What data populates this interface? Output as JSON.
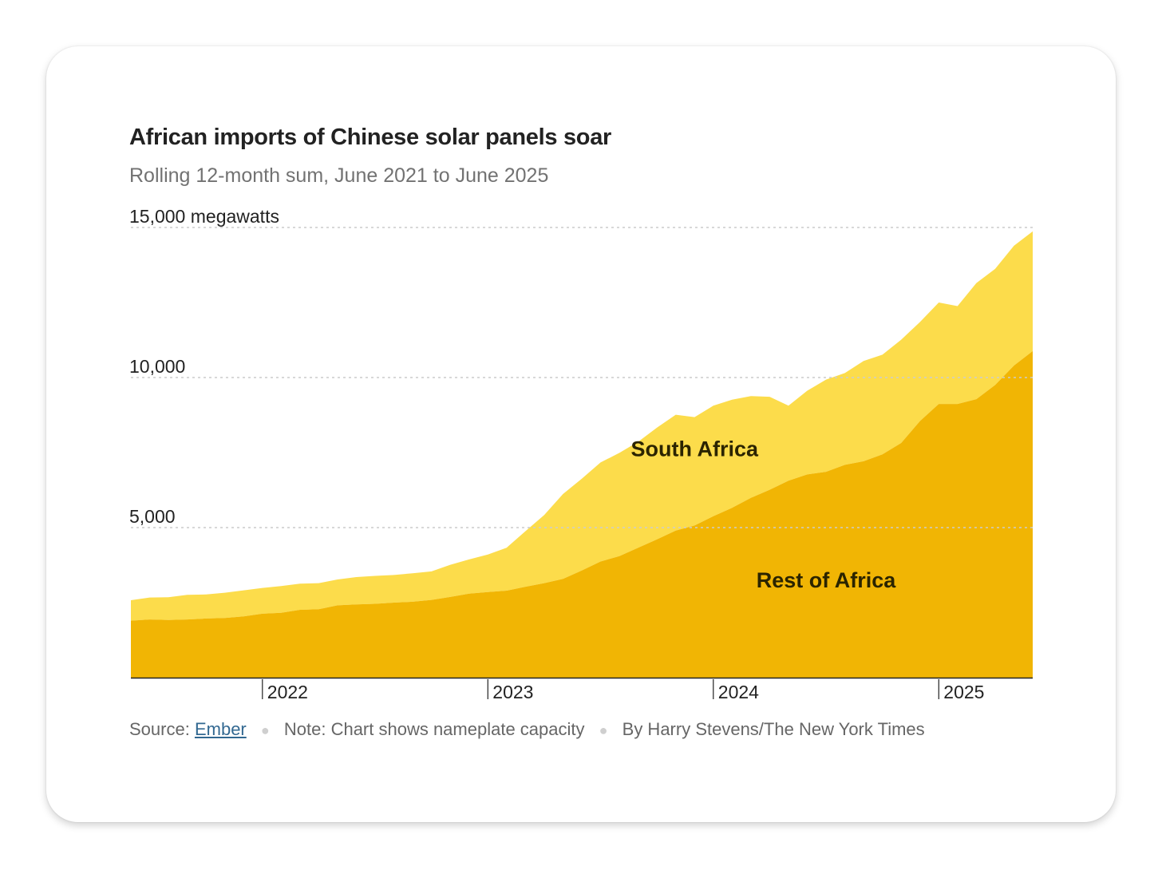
{
  "chart_data": {
    "type": "area",
    "stacked": true,
    "title": "African imports of Chinese solar panels soar",
    "subtitle": "Rolling 12-month sum, June 2021 to June 2025",
    "ylabel": "",
    "ylim": [
      0,
      15000
    ],
    "y_ticks": [
      {
        "value": 15000,
        "label": "15,000 megawatts"
      },
      {
        "value": 10000,
        "label": "10,000"
      },
      {
        "value": 5000,
        "label": "5,000"
      }
    ],
    "x_ticks": [
      {
        "index": 7,
        "label": "2022"
      },
      {
        "index": 19,
        "label": "2023"
      },
      {
        "index": 31,
        "label": "2024"
      },
      {
        "index": 43,
        "label": "2025"
      }
    ],
    "x": [
      "Jun 2021",
      "Jul 2021",
      "Aug 2021",
      "Sep 2021",
      "Oct 2021",
      "Nov 2021",
      "Dec 2021",
      "Jan 2022",
      "Feb 2022",
      "Mar 2022",
      "Apr 2022",
      "May 2022",
      "Jun 2022",
      "Jul 2022",
      "Aug 2022",
      "Sep 2022",
      "Oct 2022",
      "Nov 2022",
      "Dec 2022",
      "Jan 2023",
      "Feb 2023",
      "Mar 2023",
      "Apr 2023",
      "May 2023",
      "Jun 2023",
      "Jul 2023",
      "Aug 2023",
      "Sep 2023",
      "Oct 2023",
      "Nov 2023",
      "Dec 2023",
      "Jan 2024",
      "Feb 2024",
      "Mar 2024",
      "Apr 2024",
      "May 2024",
      "Jun 2024",
      "Jul 2024",
      "Aug 2024",
      "Sep 2024",
      "Oct 2024",
      "Nov 2024",
      "Dec 2024",
      "Jan 2025",
      "Feb 2025",
      "Mar 2025",
      "Apr 2025",
      "May 2025",
      "Jun 2025"
    ],
    "series": [
      {
        "name": "Rest of Africa",
        "label_anchor_index": 37,
        "label_anchor_value": 3000,
        "values": [
          1900,
          1940,
          1920,
          1940,
          1970,
          1990,
          2040,
          2130,
          2160,
          2260,
          2280,
          2410,
          2440,
          2460,
          2500,
          2530,
          2590,
          2690,
          2800,
          2850,
          2900,
          3030,
          3150,
          3290,
          3570,
          3870,
          4050,
          4330,
          4610,
          4900,
          5070,
          5380,
          5660,
          5990,
          6260,
          6560,
          6770,
          6860,
          7090,
          7210,
          7440,
          7820,
          8550,
          9120,
          9120,
          9280,
          9750,
          10400,
          10880
        ]
      },
      {
        "name": "South Africa",
        "label_anchor_index": 30,
        "label_anchor_value": 7380,
        "values": [
          680,
          730,
          760,
          820,
          800,
          840,
          870,
          860,
          890,
          870,
          870,
          860,
          910,
          930,
          920,
          950,
          950,
          1070,
          1140,
          1250,
          1430,
          1850,
          2270,
          2830,
          3060,
          3300,
          3440,
          3530,
          3720,
          3860,
          3610,
          3680,
          3600,
          3390,
          3100,
          2500,
          2790,
          3070,
          3060,
          3340,
          3320,
          3440,
          3300,
          3380,
          3260,
          3870,
          3870,
          3990,
          3990
        ]
      }
    ],
    "colors": {
      "Rest of Africa": "#f1b504",
      "South Africa": "#fcdc4b"
    },
    "source_label": "Source:",
    "source_link": "Ember",
    "note": "Note: Chart shows nameplate capacity",
    "byline": "By Harry Stevens/The New York Times"
  }
}
